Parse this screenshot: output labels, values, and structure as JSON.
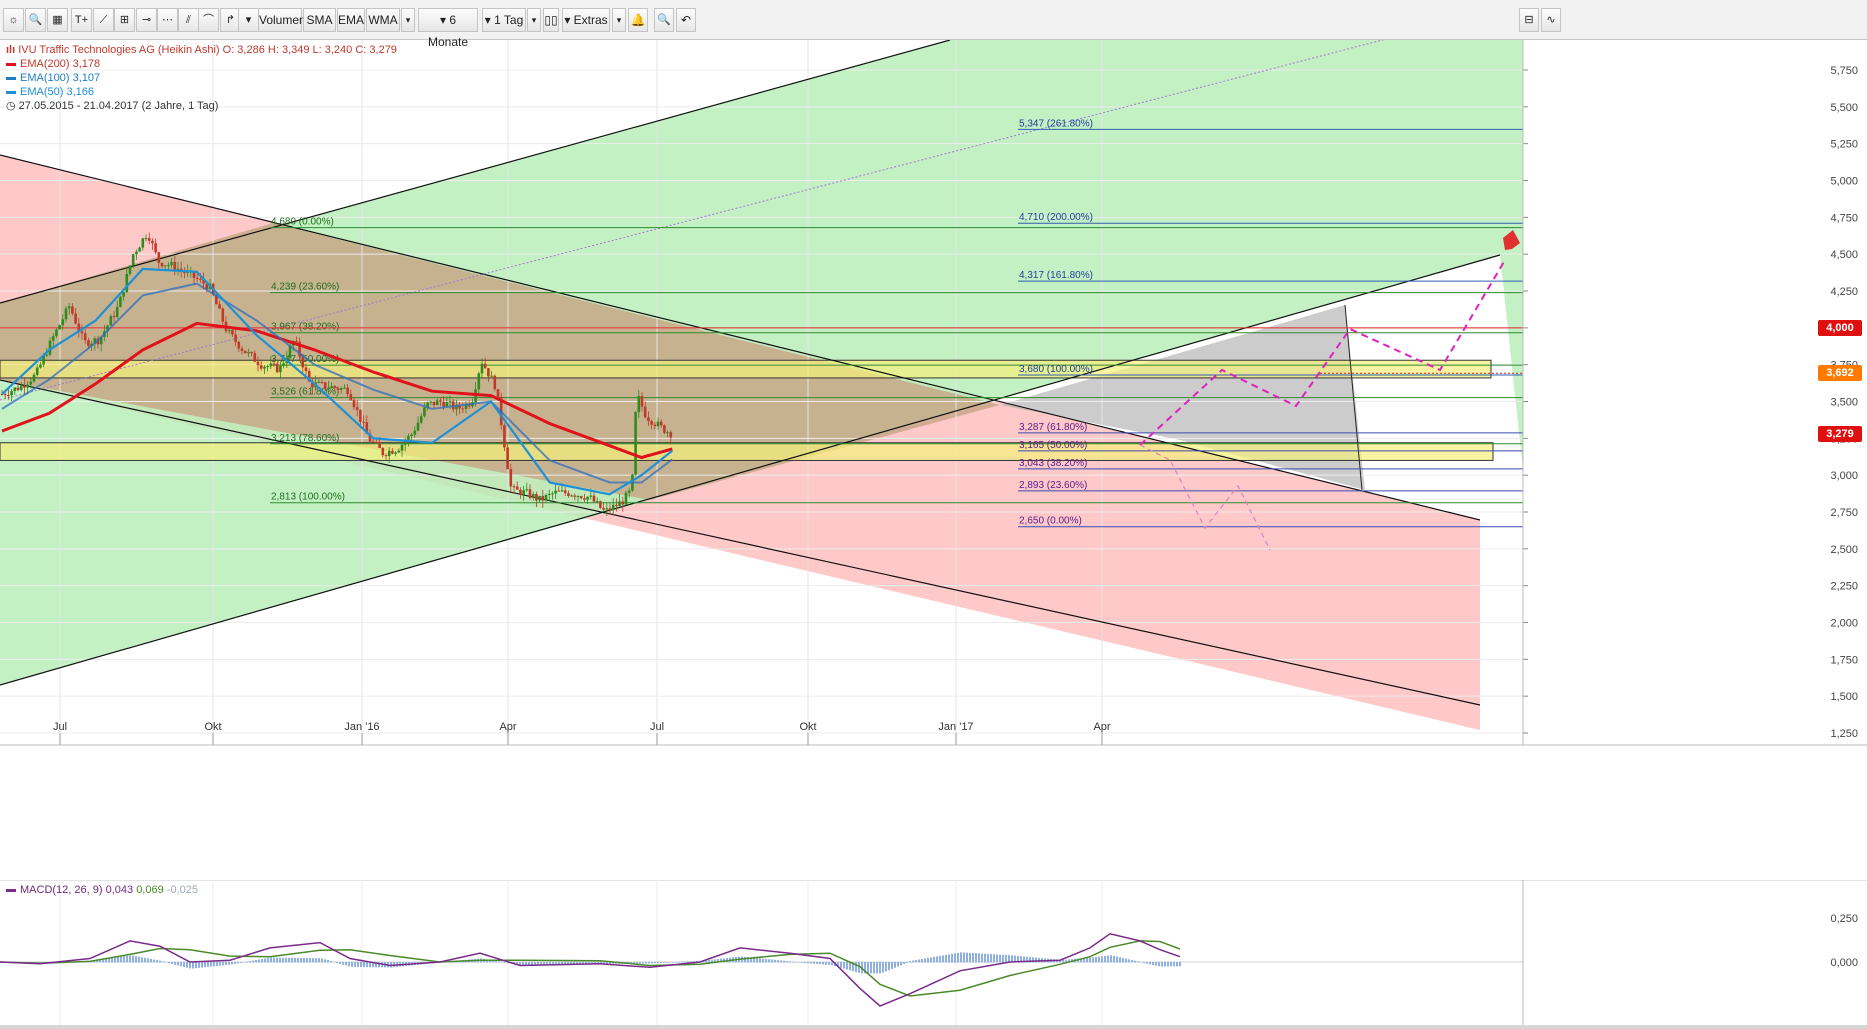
{
  "toolbar": {
    "buttons": [
      {
        "name": "settings-icon",
        "glyph": "☼"
      },
      {
        "name": "search-icon",
        "glyph": "🔍"
      },
      {
        "name": "grid-icon",
        "glyph": "▦"
      },
      {
        "name": "text-tool-icon",
        "glyph": "T+"
      },
      {
        "name": "line-tool-icon",
        "glyph": "⟋"
      },
      {
        "name": "fib-tool-icon",
        "glyph": "⊞"
      },
      {
        "name": "hline-tool-icon",
        "glyph": "⊸"
      },
      {
        "name": "ray-tool-icon",
        "glyph": "⋯"
      },
      {
        "name": "fan-tool-icon",
        "glyph": "⫽"
      },
      {
        "name": "arc-tool-icon",
        "glyph": "⌒"
      },
      {
        "name": "pointer-tool-icon",
        "glyph": "↱"
      },
      {
        "name": "more-tools-icon",
        "glyph": "▾"
      }
    ],
    "indicators": [
      "Volumen",
      "SMA",
      "EMA",
      "WMA"
    ],
    "range_label": "6 Monate",
    "interval_label": "1 Tag",
    "extras_label": "Extras",
    "zoom_icon": "🔍",
    "undo_icon": "↶"
  },
  "legend": {
    "title": "IVU Traffic Technologies  AG (Heikin Ashi)  O: 3,286  H: 3,349  L: 3,240  C: 3,279",
    "ema200": "EMA(200)  3,178",
    "ema100": "EMA(100)  3,107",
    "ema50": "EMA(50)  3,166",
    "period": "27.05.2015 - 21.04.2017   (2 Jahre, 1 Tag)",
    "colors": {
      "ema200": "#e0121b",
      "ema100": "#1e7fc0",
      "ema50": "#1e90d6",
      "title": "#c0392b"
    }
  },
  "price_tags": [
    {
      "label": "4,000",
      "color": "#e01010",
      "value": 4.0
    },
    {
      "label": "3,692",
      "color": "#ff7a00",
      "value": 3.692
    },
    {
      "label": "3,279",
      "color": "#e01010",
      "value": 3.279
    }
  ],
  "fib_left_labels": [
    {
      "text": "4,680 (0.00%)",
      "value": 4.68
    },
    {
      "text": "4,239 (23.60%)",
      "value": 4.239
    },
    {
      "text": "3,967 (38.20%)",
      "value": 3.967
    },
    {
      "text": "3,747 (50.00%)",
      "value": 3.747
    },
    {
      "text": "3,526 (61.80%)",
      "value": 3.526
    },
    {
      "text": "3,213 (78.60%)",
      "value": 3.213
    },
    {
      "text": "2,813 (100.00%)",
      "value": 2.813
    }
  ],
  "fib_right_labels": [
    {
      "text": "5,347 (261.80%)",
      "value": 5.347
    },
    {
      "text": "4,710 (200.00%)",
      "value": 4.71
    },
    {
      "text": "4,317 (161.80%)",
      "value": 4.317
    },
    {
      "text": "3,680 (100.00%)",
      "value": 3.68
    }
  ],
  "fib_small_labels": [
    {
      "text": "3,287 (61.80%)",
      "value": 3.287
    },
    {
      "text": "3,165 (50.00%)",
      "value": 3.165
    },
    {
      "text": "3,043 (38.20%)",
      "value": 3.043
    },
    {
      "text": "2,893 (23.60%)",
      "value": 2.893
    },
    {
      "text": "2,650 (0.00%)",
      "value": 2.65
    }
  ],
  "macd": {
    "label": "MACD(12, 26, 9)",
    "v1": "0,043",
    "v2": "0,069",
    "v3": "-0,025",
    "ticks": [
      "0,250",
      "0,000"
    ]
  },
  "chart_data": {
    "type": "line",
    "title": "IVU Traffic Technologies AG (Heikin Ashi)",
    "x_ticks": [
      "Jul",
      "Okt",
      "Jan '16",
      "Apr",
      "Jul",
      "Okt",
      "Jan '17",
      "Apr"
    ],
    "y_ticks": [
      "5,750",
      "5,500",
      "5,250",
      "5,000",
      "4,750",
      "4,500",
      "4,250",
      "4,000",
      "3,750",
      "3,500",
      "3,250",
      "3,000",
      "2,750",
      "2,500",
      "2,250",
      "2,000",
      "1,750",
      "1,500",
      "1,250"
    ],
    "ylim": [
      1.25,
      5.75
    ],
    "series": [
      {
        "name": "IVU Traffic Technologies AG (Heikin Ashi)",
        "color": "#3a8a2a",
        "x": [
          "2015-05-27",
          "2015-06-15",
          "2015-07-01",
          "2015-07-20",
          "2015-08-05",
          "2015-08-20",
          "2015-09-05",
          "2015-09-25",
          "2015-10-10",
          "2015-10-25",
          "2015-11-05",
          "2015-11-20",
          "2015-12-10",
          "2015-12-28",
          "2016-01-15",
          "2016-02-01",
          "2016-02-20",
          "2016-03-10",
          "2016-03-25",
          "2016-04-10",
          "2016-04-30",
          "2016-05-20",
          "2016-06-10",
          "2016-06-25",
          "2016-07-10",
          "2016-07-25",
          "2016-08-10",
          "2016-08-25",
          "2016-09-10",
          "2016-09-25",
          "2016-10-05",
          "2016-10-20",
          "2016-11-05",
          "2016-11-20",
          "2016-12-05",
          "2016-12-20",
          "2017-01-05",
          "2017-01-25",
          "2017-02-10",
          "2017-02-28",
          "2017-03-10",
          "2017-03-15",
          "2017-03-25",
          "2017-04-10",
          "2017-04-21"
        ],
        "values": [
          3.55,
          3.6,
          3.68,
          3.95,
          4.15,
          3.9,
          3.92,
          4.15,
          4.5,
          4.65,
          4.45,
          4.42,
          4.35,
          4.28,
          3.98,
          3.85,
          3.75,
          3.72,
          3.92,
          3.62,
          3.6,
          3.58,
          3.25,
          3.15,
          3.18,
          3.28,
          3.48,
          3.5,
          3.45,
          3.5,
          3.78,
          3.6,
          2.9,
          2.88,
          2.83,
          2.88,
          2.88,
          2.85,
          2.75,
          2.82,
          2.9,
          3.55,
          3.4,
          3.32,
          3.28
        ]
      },
      {
        "name": "EMA(200)",
        "color": "#e0121b",
        "x": [
          "2015-05-27",
          "2015-07-15",
          "2015-09-01",
          "2015-10-20",
          "2015-12-15",
          "2016-02-15",
          "2016-04-15",
          "2016-06-15",
          "2016-08-15",
          "2016-10-15",
          "2016-12-15",
          "2017-02-15",
          "2017-03-20",
          "2017-04-21"
        ],
        "values": [
          3.3,
          3.42,
          3.62,
          3.85,
          4.03,
          3.98,
          3.85,
          3.7,
          3.57,
          3.54,
          3.35,
          3.2,
          3.12,
          3.178
        ]
      },
      {
        "name": "EMA(100)",
        "color": "#2f6fbf",
        "x": [
          "2015-05-27",
          "2015-07-15",
          "2015-09-01",
          "2015-10-20",
          "2015-12-15",
          "2016-02-15",
          "2016-04-15",
          "2016-06-15",
          "2016-08-15",
          "2016-10-15",
          "2016-12-15",
          "2017-02-15",
          "2017-03-20",
          "2017-04-21"
        ],
        "values": [
          3.45,
          3.65,
          3.9,
          4.22,
          4.3,
          4.05,
          3.75,
          3.58,
          3.45,
          3.5,
          3.1,
          2.95,
          2.95,
          3.107
        ]
      },
      {
        "name": "EMA(50)",
        "color": "#1e90d6",
        "x": [
          "2015-05-27",
          "2015-07-15",
          "2015-09-01",
          "2015-10-20",
          "2015-12-15",
          "2016-02-15",
          "2016-04-15",
          "2016-06-15",
          "2016-08-15",
          "2016-10-15",
          "2016-12-15",
          "2017-02-15",
          "2017-03-20",
          "2017-04-21"
        ],
        "values": [
          3.55,
          3.85,
          4.05,
          4.4,
          4.38,
          3.95,
          3.62,
          3.25,
          3.22,
          3.5,
          2.95,
          2.87,
          3.0,
          3.166
        ]
      }
    ]
  }
}
